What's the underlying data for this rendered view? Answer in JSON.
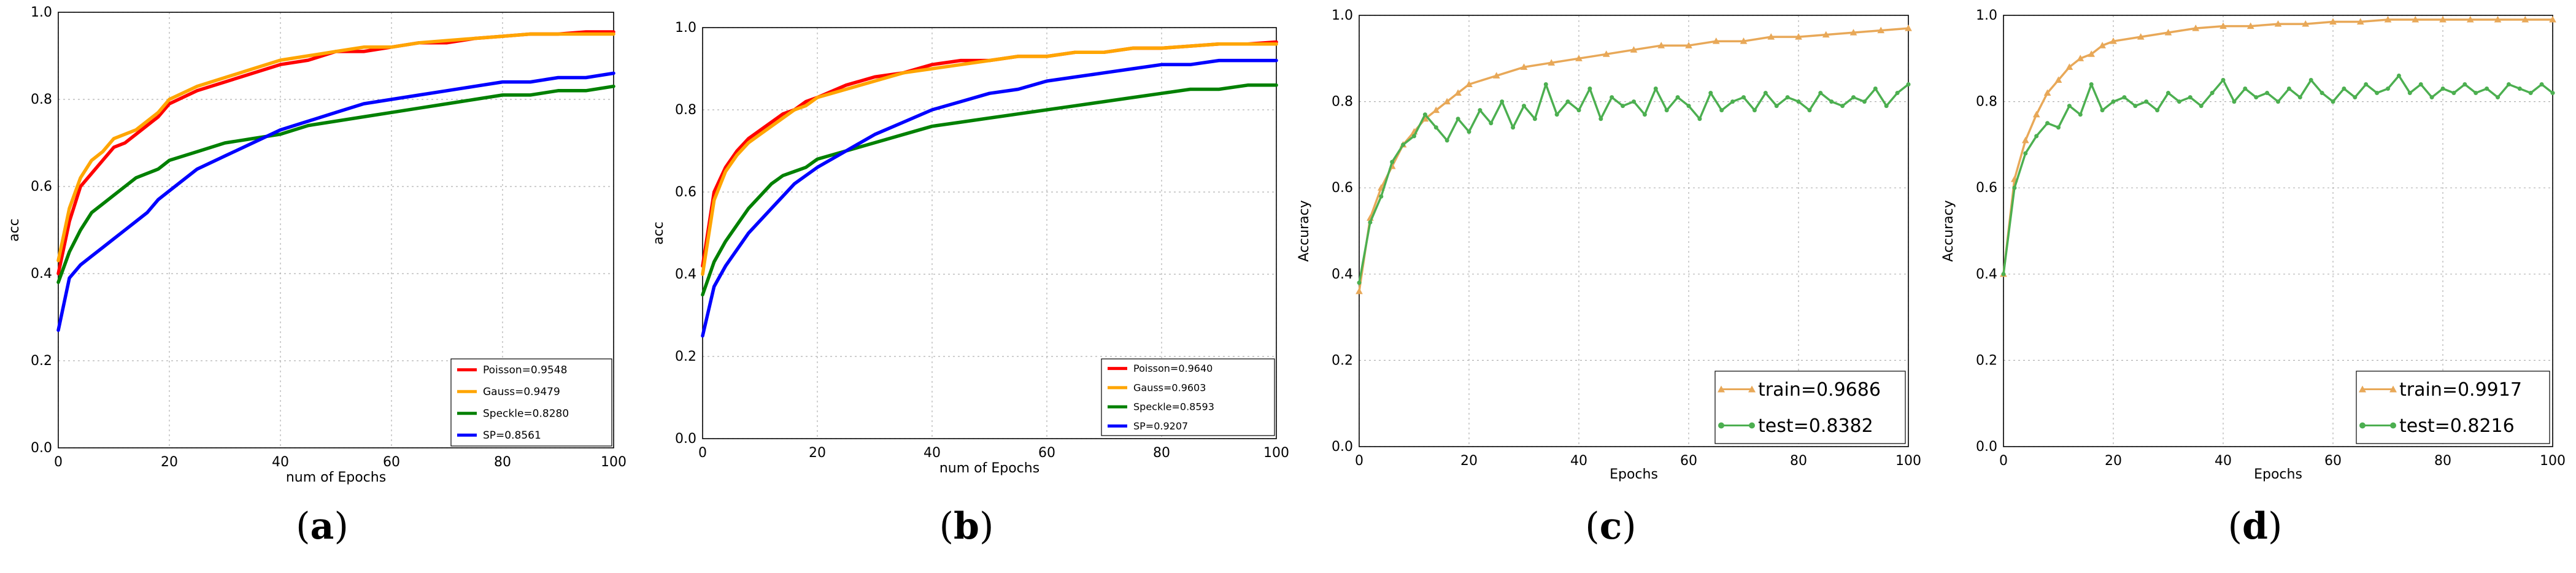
{
  "panels": [
    {
      "label_letter": "a",
      "chart_data": {
        "type": "line",
        "xlabel": "num of Epochs",
        "ylabel": "acc",
        "xlim": [
          0,
          100
        ],
        "ylim": [
          0.0,
          1.0
        ],
        "xticks": [
          "0",
          "20",
          "40",
          "60",
          "80",
          "100"
        ],
        "yticks": [
          "0.0",
          "0.2",
          "0.4",
          "0.6",
          "0.8",
          "1.0"
        ],
        "grid": true,
        "legend_position": "lower-right",
        "series": [
          {
            "name": "Poisson=0.9548",
            "color": "#ff0000",
            "marker": "none",
            "x": [
              0,
              2,
              4,
              6,
              8,
              10,
              12,
              14,
              16,
              18,
              20,
              25,
              30,
              35,
              40,
              45,
              50,
              55,
              60,
              65,
              70,
              75,
              80,
              85,
              90,
              95,
              100
            ],
            "y": [
              0.4,
              0.52,
              0.6,
              0.63,
              0.66,
              0.69,
              0.7,
              0.72,
              0.74,
              0.76,
              0.79,
              0.82,
              0.84,
              0.86,
              0.88,
              0.89,
              0.91,
              0.91,
              0.92,
              0.93,
              0.93,
              0.94,
              0.945,
              0.95,
              0.95,
              0.955,
              0.955
            ]
          },
          {
            "name": "Gauss=0.9479",
            "color": "#ffa500",
            "marker": "none",
            "x": [
              0,
              2,
              4,
              6,
              8,
              10,
              12,
              14,
              16,
              18,
              20,
              25,
              30,
              35,
              40,
              45,
              50,
              55,
              60,
              65,
              70,
              75,
              80,
              85,
              90,
              95,
              100
            ],
            "y": [
              0.43,
              0.55,
              0.62,
              0.66,
              0.68,
              0.71,
              0.72,
              0.73,
              0.75,
              0.77,
              0.8,
              0.83,
              0.85,
              0.87,
              0.89,
              0.9,
              0.91,
              0.92,
              0.92,
              0.93,
              0.935,
              0.94,
              0.945,
              0.95,
              0.95,
              0.95,
              0.95
            ]
          },
          {
            "name": "Speckle=0.8280",
            "color": "#008000",
            "marker": "none",
            "x": [
              0,
              2,
              4,
              6,
              8,
              10,
              12,
              14,
              16,
              18,
              20,
              25,
              30,
              35,
              40,
              45,
              50,
              55,
              60,
              65,
              70,
              75,
              80,
              85,
              90,
              95,
              100
            ],
            "y": [
              0.38,
              0.45,
              0.5,
              0.54,
              0.56,
              0.58,
              0.6,
              0.62,
              0.63,
              0.64,
              0.66,
              0.68,
              0.7,
              0.71,
              0.72,
              0.74,
              0.75,
              0.76,
              0.77,
              0.78,
              0.79,
              0.8,
              0.81,
              0.81,
              0.82,
              0.82,
              0.83
            ]
          },
          {
            "name": "SP=0.8561",
            "color": "#0000ff",
            "marker": "none",
            "x": [
              0,
              2,
              4,
              6,
              8,
              10,
              12,
              14,
              16,
              18,
              20,
              25,
              30,
              35,
              40,
              45,
              50,
              55,
              60,
              65,
              70,
              75,
              80,
              85,
              90,
              95,
              100
            ],
            "y": [
              0.27,
              0.39,
              0.42,
              0.44,
              0.46,
              0.48,
              0.5,
              0.52,
              0.54,
              0.57,
              0.59,
              0.64,
              0.67,
              0.7,
              0.73,
              0.75,
              0.77,
              0.79,
              0.8,
              0.81,
              0.82,
              0.83,
              0.84,
              0.84,
              0.85,
              0.85,
              0.86
            ]
          }
        ]
      }
    },
    {
      "label_letter": "b",
      "chart_data": {
        "type": "line",
        "xlabel": "num of Epochs",
        "ylabel": "acc",
        "xlim": [
          0,
          100
        ],
        "ylim": [
          0.0,
          1.0
        ],
        "xticks": [
          "0",
          "20",
          "40",
          "60",
          "80",
          "100"
        ],
        "yticks": [
          "0.0",
          "0.2",
          "0.4",
          "0.6",
          "0.8",
          "1.0"
        ],
        "grid": true,
        "legend_position": "lower-right",
        "series": [
          {
            "name": "Poisson=0.9640",
            "color": "#ff0000",
            "marker": "none",
            "x": [
              0,
              2,
              4,
              6,
              8,
              10,
              12,
              14,
              16,
              18,
              20,
              25,
              30,
              35,
              40,
              45,
              50,
              55,
              60,
              65,
              70,
              75,
              80,
              85,
              90,
              95,
              100
            ],
            "y": [
              0.42,
              0.6,
              0.66,
              0.7,
              0.73,
              0.75,
              0.77,
              0.79,
              0.8,
              0.82,
              0.83,
              0.86,
              0.88,
              0.89,
              0.91,
              0.92,
              0.92,
              0.93,
              0.93,
              0.94,
              0.94,
              0.95,
              0.95,
              0.955,
              0.96,
              0.96,
              0.965
            ]
          },
          {
            "name": "Gauss=0.9603",
            "color": "#ffa500",
            "marker": "none",
            "x": [
              0,
              2,
              4,
              6,
              8,
              10,
              12,
              14,
              16,
              18,
              20,
              25,
              30,
              35,
              40,
              45,
              50,
              55,
              60,
              65,
              70,
              75,
              80,
              85,
              90,
              95,
              100
            ],
            "y": [
              0.4,
              0.58,
              0.65,
              0.69,
              0.72,
              0.74,
              0.76,
              0.78,
              0.8,
              0.81,
              0.83,
              0.85,
              0.87,
              0.89,
              0.9,
              0.91,
              0.92,
              0.93,
              0.93,
              0.94,
              0.94,
              0.95,
              0.95,
              0.955,
              0.96,
              0.96,
              0.96
            ]
          },
          {
            "name": "Speckle=0.8593",
            "color": "#008000",
            "marker": "none",
            "x": [
              0,
              2,
              4,
              6,
              8,
              10,
              12,
              14,
              16,
              18,
              20,
              25,
              30,
              35,
              40,
              45,
              50,
              55,
              60,
              65,
              70,
              75,
              80,
              85,
              90,
              95,
              100
            ],
            "y": [
              0.35,
              0.43,
              0.48,
              0.52,
              0.56,
              0.59,
              0.62,
              0.64,
              0.65,
              0.66,
              0.68,
              0.7,
              0.72,
              0.74,
              0.76,
              0.77,
              0.78,
              0.79,
              0.8,
              0.81,
              0.82,
              0.83,
              0.84,
              0.85,
              0.85,
              0.86,
              0.86
            ]
          },
          {
            "name": "SP=0.9207",
            "color": "#0000ff",
            "marker": "none",
            "x": [
              0,
              2,
              4,
              6,
              8,
              10,
              12,
              14,
              16,
              18,
              20,
              25,
              30,
              35,
              40,
              45,
              50,
              55,
              60,
              65,
              70,
              75,
              80,
              85,
              90,
              95,
              100
            ],
            "y": [
              0.25,
              0.37,
              0.42,
              0.46,
              0.5,
              0.53,
              0.56,
              0.59,
              0.62,
              0.64,
              0.66,
              0.7,
              0.74,
              0.77,
              0.8,
              0.82,
              0.84,
              0.85,
              0.87,
              0.88,
              0.89,
              0.9,
              0.91,
              0.91,
              0.92,
              0.92,
              0.92
            ]
          }
        ]
      }
    },
    {
      "label_letter": "c",
      "chart_data": {
        "type": "line",
        "xlabel": "Epochs",
        "ylabel": "Accuracy",
        "xlim": [
          0,
          100
        ],
        "ylim": [
          0.0,
          1.0
        ],
        "xticks": [
          "0",
          "20",
          "40",
          "60",
          "80",
          "100"
        ],
        "yticks": [
          "0.0",
          "0.2",
          "0.4",
          "0.6",
          "0.8",
          "1.0"
        ],
        "grid": true,
        "legend_position": "lower-right",
        "series": [
          {
            "name": "train=0.9686",
            "color": "#e8a858",
            "marker": "triangle",
            "x": [
              0,
              2,
              4,
              6,
              8,
              10,
              12,
              14,
              16,
              18,
              20,
              25,
              30,
              35,
              40,
              45,
              50,
              55,
              60,
              65,
              70,
              75,
              80,
              85,
              90,
              95,
              100
            ],
            "y": [
              0.36,
              0.53,
              0.6,
              0.65,
              0.7,
              0.73,
              0.76,
              0.78,
              0.8,
              0.82,
              0.84,
              0.86,
              0.88,
              0.89,
              0.9,
              0.91,
              0.92,
              0.93,
              0.93,
              0.94,
              0.94,
              0.95,
              0.95,
              0.955,
              0.96,
              0.965,
              0.97
            ]
          },
          {
            "name": "test=0.8382",
            "color": "#4caf50",
            "marker": "circle",
            "x": [
              0,
              2,
              4,
              6,
              8,
              10,
              12,
              14,
              16,
              18,
              20,
              22,
              24,
              26,
              28,
              30,
              32,
              34,
              36,
              38,
              40,
              42,
              44,
              46,
              48,
              50,
              52,
              54,
              56,
              58,
              60,
              62,
              64,
              66,
              68,
              70,
              72,
              74,
              76,
              78,
              80,
              82,
              84,
              86,
              88,
              90,
              92,
              94,
              96,
              98,
              100
            ],
            "y": [
              0.38,
              0.52,
              0.58,
              0.66,
              0.7,
              0.72,
              0.77,
              0.74,
              0.71,
              0.76,
              0.73,
              0.78,
              0.75,
              0.8,
              0.74,
              0.79,
              0.76,
              0.84,
              0.77,
              0.8,
              0.78,
              0.83,
              0.76,
              0.81,
              0.79,
              0.8,
              0.77,
              0.83,
              0.78,
              0.81,
              0.79,
              0.76,
              0.82,
              0.78,
              0.8,
              0.81,
              0.78,
              0.82,
              0.79,
              0.81,
              0.8,
              0.78,
              0.82,
              0.8,
              0.79,
              0.81,
              0.8,
              0.83,
              0.79,
              0.82,
              0.84
            ]
          }
        ]
      }
    },
    {
      "label_letter": "d",
      "chart_data": {
        "type": "line",
        "xlabel": "Epochs",
        "ylabel": "Accuracy",
        "xlim": [
          0,
          100
        ],
        "ylim": [
          0.0,
          1.0
        ],
        "xticks": [
          "0",
          "20",
          "40",
          "60",
          "80",
          "100"
        ],
        "yticks": [
          "0.0",
          "0.2",
          "0.4",
          "0.6",
          "0.8",
          "1.0"
        ],
        "grid": true,
        "legend_position": "lower-right",
        "series": [
          {
            "name": "train=0.9917",
            "color": "#e8a858",
            "marker": "triangle",
            "x": [
              0,
              2,
              4,
              6,
              8,
              10,
              12,
              14,
              16,
              18,
              20,
              25,
              30,
              35,
              40,
              45,
              50,
              55,
              60,
              65,
              70,
              75,
              80,
              85,
              90,
              95,
              100
            ],
            "y": [
              0.4,
              0.62,
              0.71,
              0.77,
              0.82,
              0.85,
              0.88,
              0.9,
              0.91,
              0.93,
              0.94,
              0.95,
              0.96,
              0.97,
              0.975,
              0.975,
              0.98,
              0.98,
              0.985,
              0.985,
              0.99,
              0.99,
              0.99,
              0.99,
              0.99,
              0.99,
              0.99
            ]
          },
          {
            "name": "test=0.8216",
            "color": "#4caf50",
            "marker": "circle",
            "x": [
              0,
              2,
              4,
              6,
              8,
              10,
              12,
              14,
              16,
              18,
              20,
              22,
              24,
              26,
              28,
              30,
              32,
              34,
              36,
              38,
              40,
              42,
              44,
              46,
              48,
              50,
              52,
              54,
              56,
              58,
              60,
              62,
              64,
              66,
              68,
              70,
              72,
              74,
              76,
              78,
              80,
              82,
              84,
              86,
              88,
              90,
              92,
              94,
              96,
              98,
              100
            ],
            "y": [
              0.4,
              0.6,
              0.68,
              0.72,
              0.75,
              0.74,
              0.79,
              0.77,
              0.84,
              0.78,
              0.8,
              0.81,
              0.79,
              0.8,
              0.78,
              0.82,
              0.8,
              0.81,
              0.79,
              0.82,
              0.85,
              0.8,
              0.83,
              0.81,
              0.82,
              0.8,
              0.83,
              0.81,
              0.85,
              0.82,
              0.8,
              0.83,
              0.81,
              0.84,
              0.82,
              0.83,
              0.86,
              0.82,
              0.84,
              0.81,
              0.83,
              0.82,
              0.84,
              0.82,
              0.83,
              0.81,
              0.84,
              0.83,
              0.82,
              0.84,
              0.82
            ]
          }
        ]
      }
    }
  ]
}
